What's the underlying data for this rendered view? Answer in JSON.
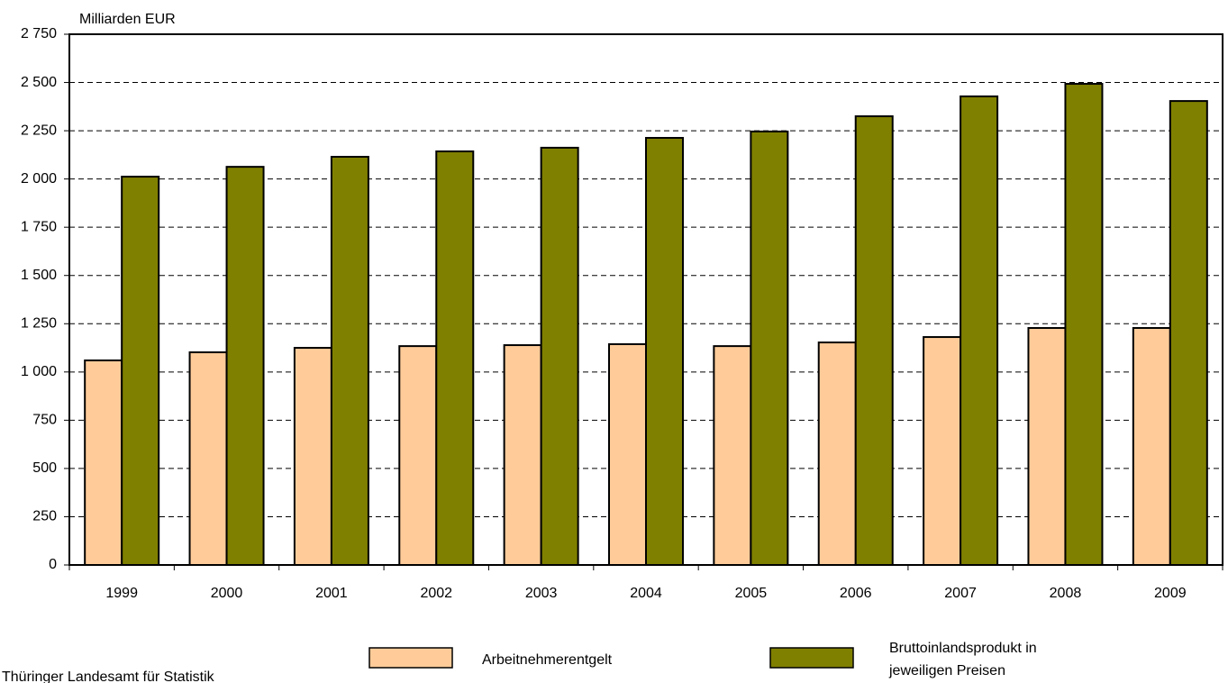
{
  "chart_data": {
    "type": "bar",
    "y_axis_label": "Milliarden EUR",
    "categories": [
      "1999",
      "2000",
      "2001",
      "2002",
      "2003",
      "2004",
      "2005",
      "2006",
      "2007",
      "2008",
      "2009"
    ],
    "series": [
      {
        "name": "Arbeitnehmerentgelt",
        "color": "#ffcc99",
        "values": [
          1060,
          1102,
          1125,
          1134,
          1139,
          1144,
          1134,
          1153,
          1181,
          1228,
          1228
        ]
      },
      {
        "name": "Bruttoinlandsprodukt in jeweiligen Preisen",
        "color": "#808000",
        "values": [
          2012,
          2063,
          2115,
          2143,
          2162,
          2213,
          2246,
          2325,
          2428,
          2493,
          2404
        ]
      }
    ],
    "ylim": [
      0,
      2750
    ],
    "yticks": [
      0,
      250,
      500,
      750,
      {
        "value": 1000,
        "label": "1 000"
      },
      {
        "value": 1250,
        "label": "1 250"
      },
      {
        "value": 1500,
        "label": "1 500"
      },
      {
        "value": 1750,
        "label": "1 750"
      },
      {
        "value": 2000,
        "label": "2 000"
      },
      {
        "value": 2250,
        "label": "2 250"
      },
      {
        "value": 2500,
        "label": "2 500"
      },
      {
        "value": 2750,
        "label": "2 750"
      }
    ],
    "grid": true,
    "source": "Thüringer Landesamt für Statistik"
  }
}
